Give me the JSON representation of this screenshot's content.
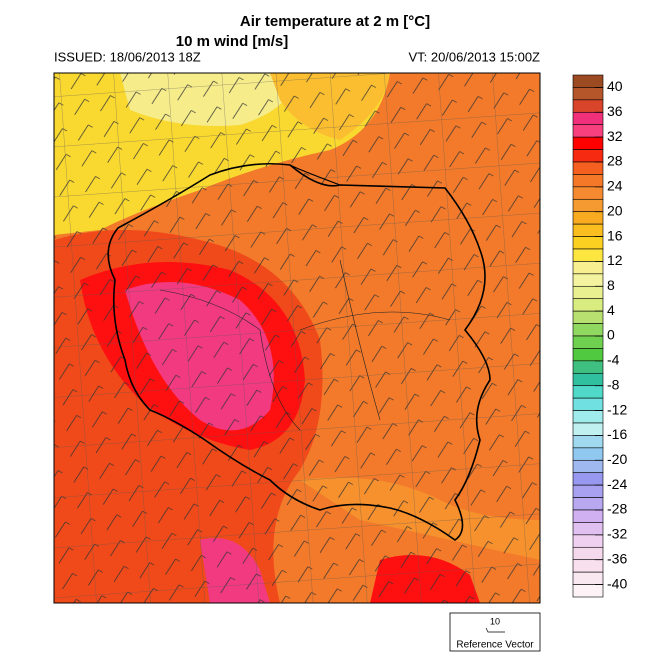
{
  "header": {
    "title": "Air temperature at 2 m [°C]",
    "subtitle": "10 m wind [m/s]",
    "issued": "ISSUED: 18/06/2013 18Z",
    "valid_time": "VT: 20/06/2013 15:00Z"
  },
  "colorbar": {
    "labels": [
      40,
      36,
      32,
      28,
      24,
      20,
      16,
      12,
      8,
      4,
      0,
      -4,
      -8,
      -12,
      -16,
      -20,
      -24,
      -28,
      -32,
      -36,
      -40
    ],
    "colors": [
      "#9c4a22",
      "#b5562a",
      "#d8452a",
      "#f0307a",
      "#f8407f",
      "#ff0000",
      "#f52a10",
      "#f56020",
      "#f57828",
      "#f58a30",
      "#f59a30",
      "#f8aa20",
      "#fbbe20",
      "#fcd020",
      "#fde640",
      "#f8f090",
      "#f4f4a0",
      "#e8f090",
      "#d8ec80",
      "#b8e070",
      "#90d860",
      "#70d050",
      "#50c840",
      "#40c080",
      "#30c0a0",
      "#50d8c8",
      "#70e0e0",
      "#a0ecec",
      "#c0f0f0",
      "#a0d8f0",
      "#90c8f0",
      "#a0b8f0",
      "#9898f0",
      "#a8a0f0",
      "#b8a8f0",
      "#d0b0f0",
      "#e0c0f0",
      "#f0d0f0",
      "#f4d8ec",
      "#f8e0ee",
      "#fae8f0",
      "#fdf2f6"
    ]
  },
  "reference_vector": {
    "value": "10",
    "label": "Reference Vector"
  }
}
